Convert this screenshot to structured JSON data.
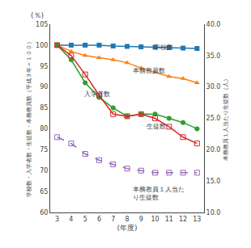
{
  "chart_data": {
    "type": "line",
    "xlabel": "(年度)",
    "ylabel": "学校数・入学者数・生徒数・本務教員数（平成３年＝１００）",
    "y2label": "本務教員１人当たり生徒数（人）",
    "x": [
      3,
      4,
      5,
      6,
      7,
      8,
      9,
      10,
      11,
      12,
      13
    ],
    "series": [
      {
        "values": [
          100,
          100,
          100,
          100,
          99.8,
          99.7,
          99.6,
          99.5,
          99.4,
          99.3,
          99.2
        ],
        "marker": "square",
        "line_style": "solid"
      },
      {
        "values": [
          100,
          98.5,
          97.5,
          97.0,
          96.5,
          95.8,
          94.5,
          93.5,
          92.5,
          92.0,
          91.0
        ],
        "marker": "triangle",
        "line_style": "solid"
      },
      {
        "values": [
          100,
          96.5,
          91.0,
          87.5,
          85.0,
          83.0,
          83.5,
          83.5,
          82.5,
          81.5,
          80.0
        ],
        "marker": "circle",
        "line_style": "solid"
      },
      {
        "values": [
          100,
          97.5,
          93.0,
          88.0,
          83.5,
          83.0,
          83.5,
          82.5,
          80.5,
          78.0,
          76.5
        ],
        "marker": "square-open",
        "line_style": "solid"
      },
      {
        "values": [
          78.0,
          76.5,
          74.0,
          72.5,
          71.5,
          70.5,
          70.0,
          69.5,
          69.5,
          69.5,
          69.5
        ],
        "marker": "square-open",
        "line_style": "dashed"
      }
    ],
    "xlim": [
      2.5,
      13.5
    ],
    "xticks": [
      3,
      4,
      5,
      6,
      7,
      8,
      9,
      10,
      11,
      12,
      13
    ],
    "ylim": [
      60,
      105
    ],
    "yticks": [
      60,
      65,
      70,
      75,
      80,
      85,
      90,
      95,
      100,
      105
    ],
    "y2lim": [
      10.0,
      40.0
    ],
    "y2ticks": [
      {
        "value": 10,
        "label": "10.0"
      },
      {
        "value": 15,
        "label": "15.0"
      },
      {
        "value": 20,
        "label": "20.0"
      },
      {
        "value": 25,
        "label": "25.0"
      },
      {
        "value": 30,
        "label": "30.0"
      },
      {
        "value": 35,
        "label": "35.0"
      },
      {
        "value": 40,
        "label": "40.0"
      }
    ],
    "grid": false,
    "annotations": [
      {
        "text": "(％)"
      },
      {
        "text": "学校数",
        "x": 9.8,
        "y": 99.5
      },
      {
        "text": "本務教員数",
        "x": 8.3,
        "y": 93.8
      },
      {
        "text": "入学者数",
        "x": 4.8,
        "y": 88.2
      },
      {
        "text": "生徒数",
        "x": 9.3,
        "y": 80.5
      },
      {
        "text": "本務教員１人当た",
        "x": 8.3,
        "y": 65.5
      },
      {
        "text": "り生徒数",
        "x": 8.3,
        "y": 63.5
      }
    ]
  }
}
